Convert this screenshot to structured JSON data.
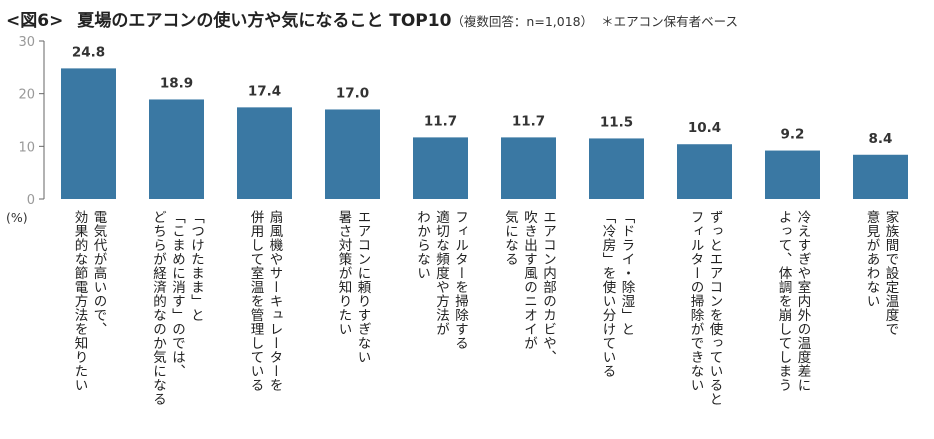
{
  "header": {
    "figure_label": "<図6>",
    "title": "夏場のエアコンの使い方や気になること TOP10",
    "note": "（複数回答：n=1,018）",
    "base_note": "＊エアコン保有者ベース"
  },
  "colors": {
    "bar": "#3a78a3",
    "value_label": "#2f6a94",
    "axis": "#666666"
  },
  "chart_data": {
    "type": "bar",
    "title": "夏場のエアコンの使い方や気になること TOP10",
    "ylabel": "(%)",
    "xlabel": "",
    "ylim": [
      0,
      30
    ],
    "yticks": [
      "0",
      "10",
      "20",
      "30"
    ],
    "ytick_values": [
      0,
      10,
      20,
      30
    ],
    "grid": false,
    "categories": [
      "電気代が高いので、\n効果的な節電方法を知りたい",
      "「つけたまま」と\n「こまめに消す」のでは、\nどちらが経済的なのか気になる",
      "扇風機やサーキュレーターを\n併用して室温を管理している",
      "エアコンに頼りすぎない\n暑さ対策が知りたい",
      "フィルターを掃除する\n適切な頻度や方法が\nわからない",
      "エアコン内部のカビや、\n吹き出す風のニオイが\n気になる",
      "「ドライ・除湿」と\n「冷房」を使い分けている",
      "ずっとエアコンを使っていると\nフィルターの掃除ができない",
      "冷えすぎや室内外の温度差に\nよって、体調を崩してしまう",
      "家族間で設定温度で\n意見があわない"
    ],
    "values": [
      24.8,
      18.9,
      17.4,
      17.0,
      11.7,
      11.7,
      11.5,
      10.4,
      9.2,
      8.4
    ],
    "value_labels": [
      "24.8",
      "18.9",
      "17.4",
      "17.0",
      "11.7",
      "11.7",
      "11.5",
      "10.4",
      "9.2",
      "8.4"
    ]
  }
}
